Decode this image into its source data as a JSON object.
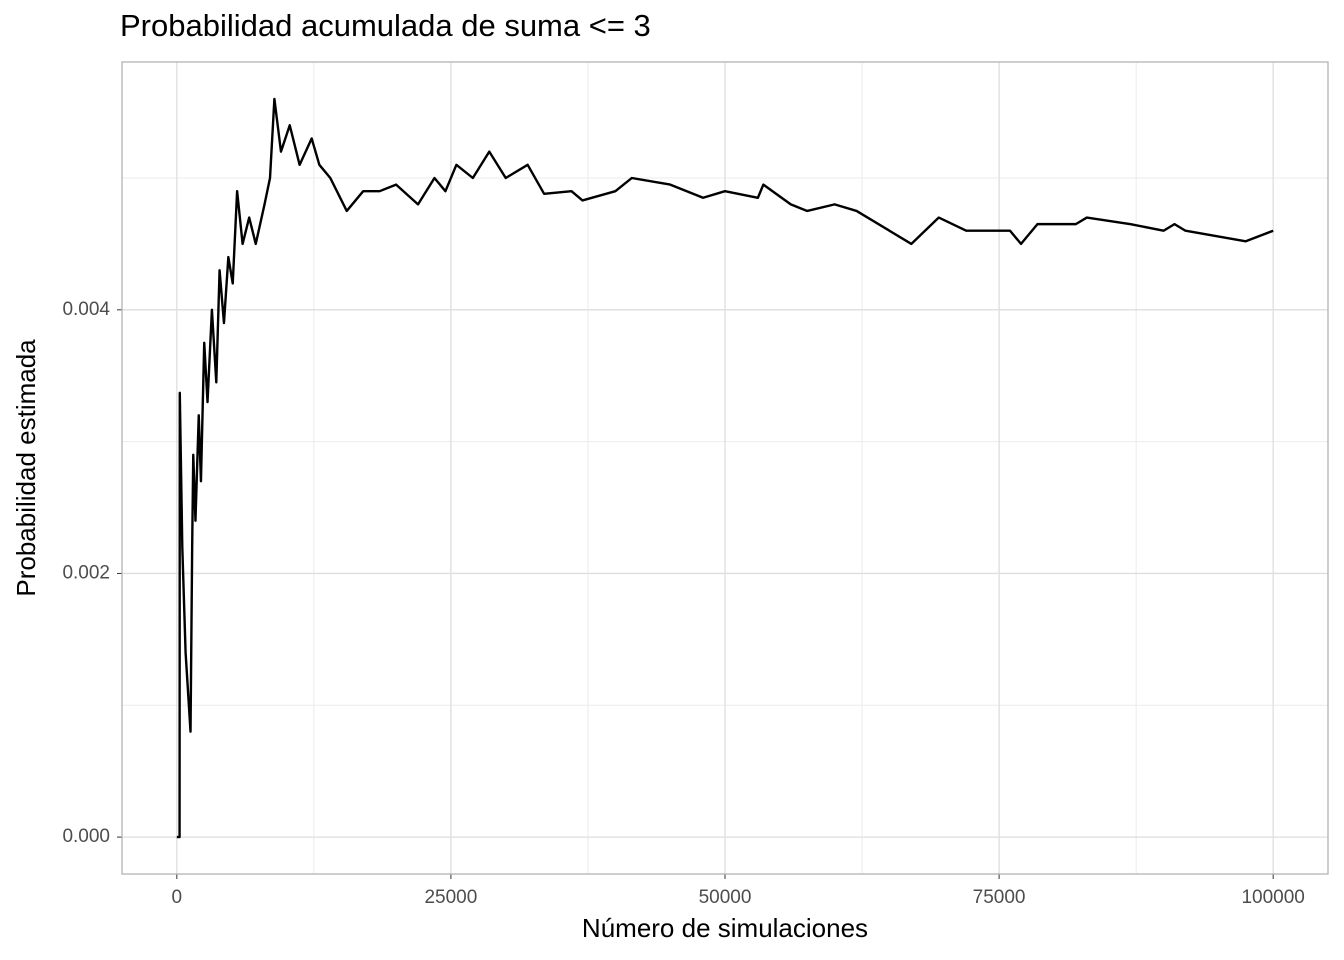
{
  "chart_data": {
    "type": "line",
    "title": "Probabilidad acumulada de suma <= 3",
    "x_label": "Número de simulaciones",
    "y_label": "Probabilidad estimada",
    "x": [
      0,
      250,
      270,
      500,
      800,
      1100,
      1250,
      1400,
      1500,
      1700,
      2000,
      2200,
      2500,
      2800,
      3200,
      3600,
      3900,
      4300,
      4700,
      5100,
      5500,
      6000,
      6600,
      7200,
      8000,
      8500,
      8900,
      9500,
      10300,
      11200,
      12300,
      13000,
      14000,
      15500,
      17000,
      18500,
      20000,
      22000,
      23500,
      24500,
      25500,
      27000,
      28500,
      30000,
      32000,
      33500,
      36000,
      37000,
      40000,
      41500,
      45000,
      48000,
      50000,
      53000,
      53500,
      56000,
      57500,
      60000,
      62000,
      65000,
      67000,
      69500,
      72000,
      76000,
      77000,
      78500,
      82000,
      83000,
      87000,
      90000,
      91000,
      92000,
      97500,
      100000
    ],
    "series": [
      {
        "color": "#000000",
        "values": [
          0,
          0,
          0.00337,
          0.0022,
          0.0014,
          0.001,
          0.0008,
          0.0022,
          0.0029,
          0.0024,
          0.0032,
          0.0027,
          0.00375,
          0.0033,
          0.004,
          0.00345,
          0.0043,
          0.0039,
          0.0044,
          0.0042,
          0.0049,
          0.0045,
          0.0047,
          0.0045,
          0.0048,
          0.005,
          0.0056,
          0.0052,
          0.0054,
          0.0051,
          0.0053,
          0.0051,
          0.005,
          0.00475,
          0.0049,
          0.0049,
          0.00495,
          0.0048,
          0.005,
          0.0049,
          0.0051,
          0.005,
          0.0052,
          0.005,
          0.0051,
          0.00488,
          0.0049,
          0.00483,
          0.0049,
          0.005,
          0.00495,
          0.00485,
          0.0049,
          0.00485,
          0.00495,
          0.0048,
          0.00475,
          0.0048,
          0.00475,
          0.0046,
          0.0045,
          0.0047,
          0.0046,
          0.0046,
          0.0045,
          0.00465,
          0.00465,
          0.0047,
          0.00465,
          0.0046,
          0.00465,
          0.0046,
          0.00452,
          0.0046
        ]
      }
    ],
    "xlim": [
      -5000,
      105000
    ],
    "xticks": [
      0,
      25000,
      50000,
      75000,
      100000
    ],
    "ylim": [
      -0.00028,
      0.00588
    ],
    "yticks": [
      {
        "value": 0,
        "label": "0.000"
      },
      0.002,
      0.004
    ],
    "grid": true
  }
}
